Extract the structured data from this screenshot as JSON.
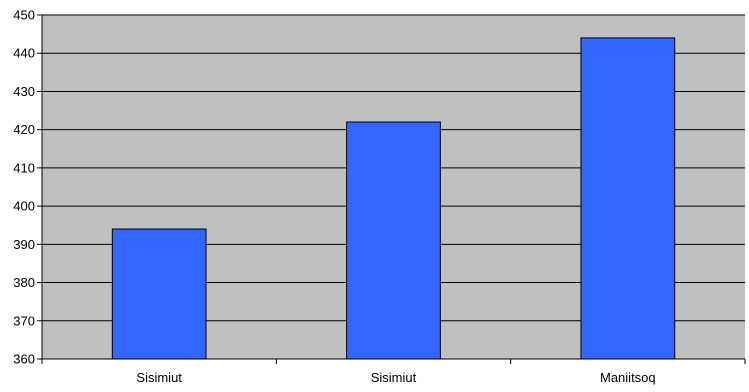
{
  "chart_data": {
    "type": "bar",
    "title": "",
    "xlabel": "",
    "ylabel": "",
    "categories": [
      "Sisimiut",
      "Sisimiut",
      "Maniitsoq"
    ],
    "values": [
      394,
      422,
      444
    ],
    "ylim": [
      360,
      450
    ],
    "yticks": [
      "360",
      "370",
      "380",
      "390",
      "400",
      "410",
      "420",
      "430",
      "440",
      "450"
    ],
    "grid": true,
    "legend": "none"
  },
  "colors": {
    "plot_background": "#c0c0c0",
    "bar_fill": "#3366ff",
    "bar_stroke": "#000000",
    "gridline": "#000000"
  }
}
